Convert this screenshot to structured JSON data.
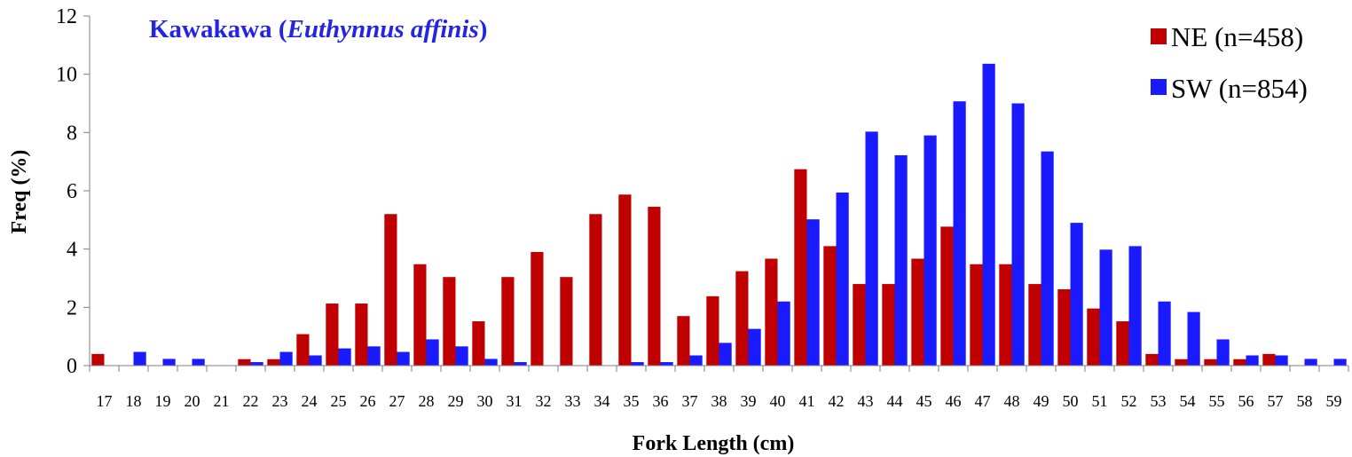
{
  "chart_data": {
    "type": "bar",
    "title_main": "Kawakawa (",
    "title_italic": "Euthynnus affinis",
    "title_close": ")",
    "xlabel": "Fork Length (cm)",
    "ylabel": "Freq (%)",
    "ylim": [
      0,
      12
    ],
    "yticks": [
      "0",
      "2",
      "4",
      "6",
      "8",
      "10",
      "12"
    ],
    "grid": false,
    "legend_position": "top-right",
    "categories": [
      "17",
      "18",
      "19",
      "20",
      "21",
      "22",
      "23",
      "24",
      "25",
      "26",
      "27",
      "28",
      "29",
      "30",
      "31",
      "32",
      "33",
      "34",
      "35",
      "36",
      "37",
      "38",
      "39",
      "40",
      "41",
      "42",
      "43",
      "44",
      "45",
      "46",
      "47",
      "48",
      "49",
      "50",
      "51",
      "52",
      "53",
      "54",
      "55",
      "56",
      "57",
      "58",
      "59"
    ],
    "series": [
      {
        "name": "NE (n=458)",
        "color": "#c00000",
        "values": [
          0.4,
          0,
          0,
          0,
          0,
          0.22,
          0.22,
          1.08,
          2.13,
          2.13,
          5.2,
          3.48,
          3.04,
          1.52,
          3.04,
          3.9,
          3.04,
          5.2,
          5.87,
          5.45,
          1.7,
          2.38,
          3.24,
          3.67,
          6.74,
          4.1,
          2.8,
          2.8,
          3.67,
          4.77,
          3.48,
          3.48,
          2.8,
          2.62,
          1.96,
          1.52,
          0.4,
          0.22,
          0.22,
          0.22,
          0.4,
          0,
          0
        ]
      },
      {
        "name": "SW (n=854)",
        "color": "#1a1aff",
        "values": [
          0,
          0.47,
          0.23,
          0.23,
          0,
          0.12,
          0.47,
          0.35,
          0.59,
          0.66,
          0.47,
          0.9,
          0.66,
          0.23,
          0.12,
          0,
          0,
          0,
          0.12,
          0.12,
          0.35,
          0.78,
          1.26,
          2.2,
          5.02,
          5.94,
          8.03,
          7.22,
          7.9,
          9.07,
          10.36,
          9.0,
          7.35,
          4.9,
          3.98,
          4.1,
          2.2,
          1.84,
          0.9,
          0.35,
          0.35,
          0.23,
          0.23
        ]
      }
    ]
  }
}
